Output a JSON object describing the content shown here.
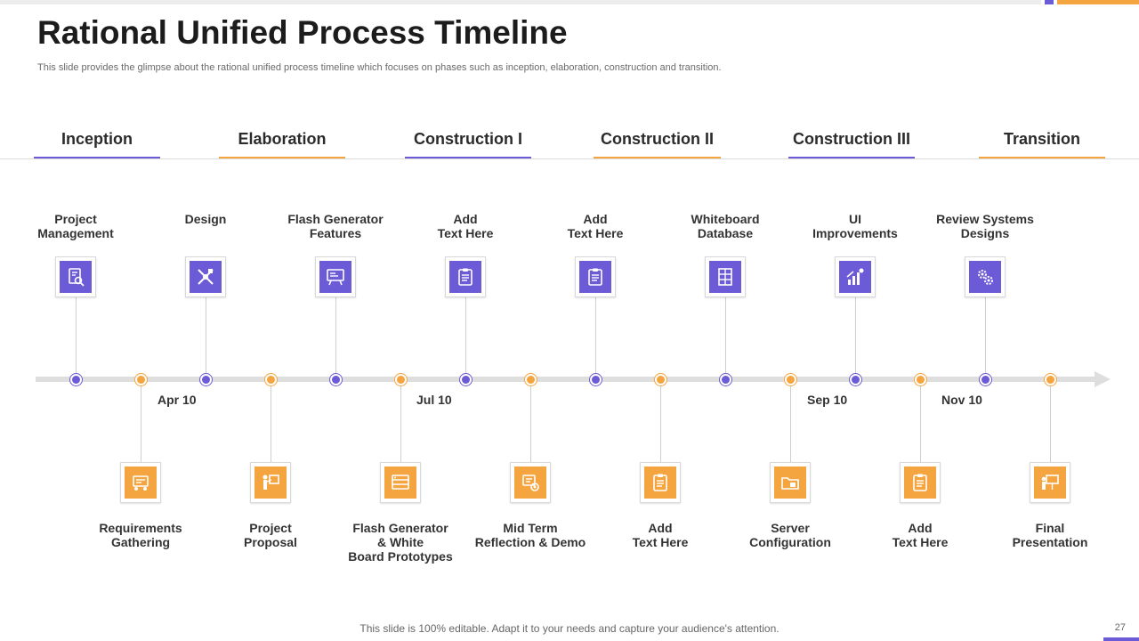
{
  "title": "Rational Unified Process Timeline",
  "subtitle": "This slide provides the glimpse about the rational unified process timeline which focuses on phases such as inception, elaboration, construction and transition.",
  "colors": {
    "purple": "#6b5bd6",
    "orange": "#f5a540"
  },
  "phases": [
    {
      "label": "Inception",
      "color": "purple"
    },
    {
      "label": "Elaboration",
      "color": "orange"
    },
    {
      "label": "Construction I",
      "color": "purple"
    },
    {
      "label": "Construction II",
      "color": "orange"
    },
    {
      "label": "Construction III",
      "color": "purple"
    },
    {
      "label": "Transition",
      "color": "orange"
    }
  ],
  "milestones_top": [
    {
      "lines": [
        "Project",
        "Management"
      ],
      "icon": "document-search-icon"
    },
    {
      "lines": [
        "Design"
      ],
      "icon": "design-tools-icon"
    },
    {
      "lines": [
        "Flash Generator",
        "Features"
      ],
      "icon": "generator-board-icon"
    },
    {
      "lines": [
        "Add",
        "Text Here"
      ],
      "icon": "clipboard-icon"
    },
    {
      "lines": [
        "Add",
        "Text Here"
      ],
      "icon": "clipboard-icon"
    },
    {
      "lines": [
        "Whiteboard",
        "Database"
      ],
      "icon": "database-icon"
    },
    {
      "lines": [
        "UI",
        "Improvements"
      ],
      "icon": "growth-chart-icon"
    },
    {
      "lines": [
        "Review Systems",
        "Designs"
      ],
      "icon": "gears-icon"
    }
  ],
  "milestones_bottom": [
    {
      "lines": [
        "Requirements",
        "Gathering"
      ],
      "icon": "requirements-icon"
    },
    {
      "lines": [
        "Project",
        "Proposal"
      ],
      "icon": "presenter-icon"
    },
    {
      "lines": [
        "Flash Generator",
        "& White",
        "Board Prototypes"
      ],
      "icon": "prototype-board-icon"
    },
    {
      "lines": [
        "Mid Term",
        "Reflection & Demo"
      ],
      "icon": "demo-screen-icon"
    },
    {
      "lines": [
        "Add",
        "Text Here"
      ],
      "icon": "clipboard-icon"
    },
    {
      "lines": [
        "Server",
        "Configuration"
      ],
      "icon": "server-folder-icon"
    },
    {
      "lines": [
        "Add",
        "Text Here"
      ],
      "icon": "clipboard-icon"
    },
    {
      "lines": [
        "Final",
        "Presentation"
      ],
      "icon": "presentation-board-icon"
    }
  ],
  "dates": [
    "Apr 10",
    "Jul 10",
    "Sep 10",
    "Nov 10"
  ],
  "footer": "This slide is 100% editable. Adapt it to your needs and capture your audience's attention.",
  "page_number": "27"
}
